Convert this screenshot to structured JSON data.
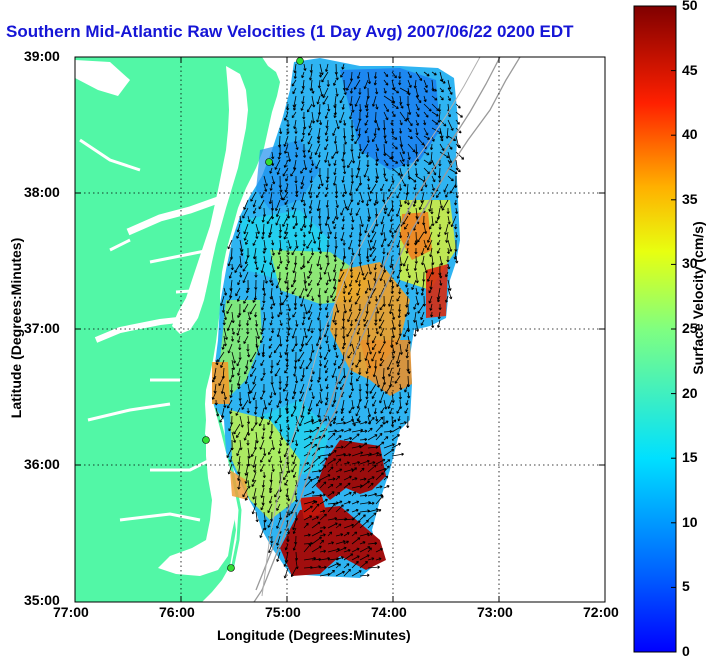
{
  "title": "Southern Mid-Atlantic Raw Velocities (1 Day Avg) 2007/06/22 0200 EDT",
  "xlabel": "Longitude (Degrees:Minutes)",
  "ylabel": "Latitude (Degrees:Minutes)",
  "x_ticks": [
    "77:00",
    "76:00",
    "75:00",
    "74:00",
    "73:00",
    "72:00"
  ],
  "y_ticks": [
    "39:00",
    "38:00",
    "37:00",
    "36:00",
    "35:00"
  ],
  "colorbar": {
    "label": "Surface Velocity (cm/s)",
    "ticks": [
      "0",
      "5",
      "10",
      "15",
      "20",
      "25",
      "30",
      "35",
      "40",
      "45",
      "50"
    ],
    "min": 0,
    "max": 50
  },
  "colors": {
    "land": "#52f7a6",
    "title": "#1515d6",
    "coastal_stations": "#33dd33"
  },
  "chart_data": {
    "type": "heatmap",
    "x_range": [
      "77:00",
      "72:00"
    ],
    "y_range": [
      "35:00",
      "39:00"
    ],
    "grid": true,
    "value_units": "cm/s"
  }
}
